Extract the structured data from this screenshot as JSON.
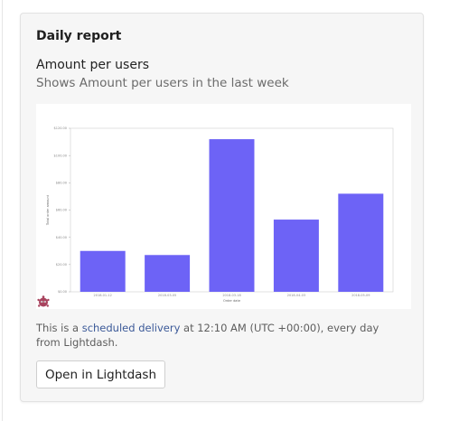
{
  "card": {
    "title": "Daily report",
    "chart_title": "Amount per users",
    "chart_description": "Shows Amount per users in the last week"
  },
  "footnote": {
    "prefix": "This is a ",
    "link_text": "scheduled delivery",
    "suffix": " at 12:10 AM (UTC +00:00), every day from Lightdash."
  },
  "button": {
    "label": "Open in Lightdash"
  },
  "icons": {
    "bot": "lightdash-bot-icon"
  },
  "colors": {
    "bar": "#6d63f6",
    "link": "#3b5998"
  },
  "chart_data": {
    "type": "bar",
    "categories": [
      "2018-01-12",
      "2018-03-05",
      "2018-03-18",
      "2018-04-03",
      "2018-05-09"
    ],
    "values": [
      30,
      27,
      112,
      53,
      72
    ],
    "title": "",
    "xlabel": "Order date",
    "ylabel": "Total order amount",
    "yticks": [
      "$0.00",
      "$20.00",
      "$40.00",
      "$60.00",
      "$80.00",
      "$100.00",
      "$120.00"
    ],
    "ylim": [
      0,
      120
    ],
    "grid": false
  }
}
